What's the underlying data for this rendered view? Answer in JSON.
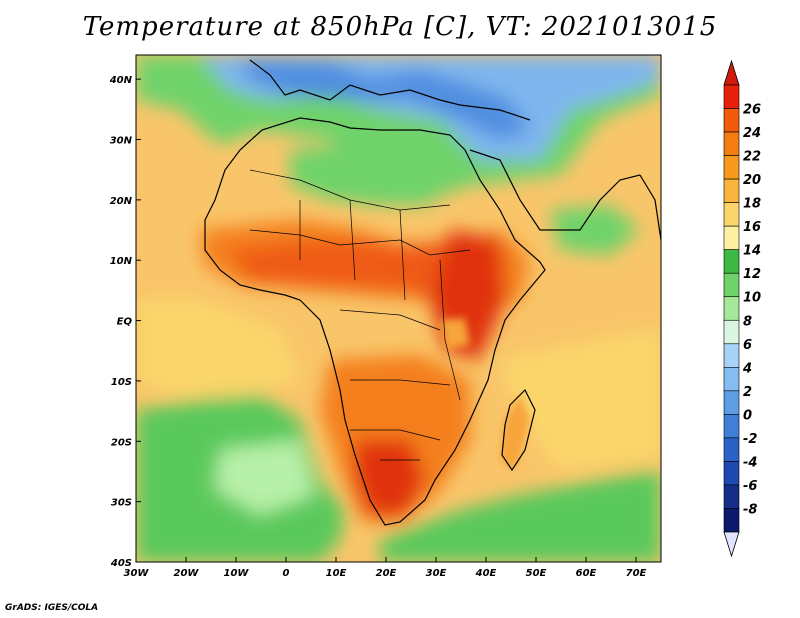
{
  "title": "Temperature at 850hPa [C], VT: 2021013015",
  "footer": "GrADS: IGES/COLA",
  "map": {
    "lon_range": [
      -30,
      75
    ],
    "lat_range": [
      -40,
      44
    ],
    "x_ticks": [
      "30W",
      "20W",
      "10W",
      "0",
      "10E",
      "20E",
      "30E",
      "40E",
      "50E",
      "60E",
      "70E"
    ],
    "x_tick_values": [
      -30,
      -20,
      -10,
      0,
      10,
      20,
      30,
      40,
      50,
      60,
      70
    ],
    "y_ticks": [
      "40N",
      "30N",
      "20N",
      "10N",
      "EQ",
      "10S",
      "20S",
      "30S",
      "40S"
    ],
    "y_tick_values": [
      40,
      30,
      20,
      10,
      0,
      -10,
      -20,
      -30,
      -40
    ],
    "grid": false
  },
  "colorbar": {
    "labels": [
      "26",
      "24",
      "22",
      "20",
      "18",
      "16",
      "14",
      "12",
      "10",
      "8",
      "6",
      "4",
      "2",
      "0",
      "-2",
      "-4",
      "-6",
      "-8"
    ],
    "levels": [
      26,
      24,
      22,
      20,
      18,
      16,
      14,
      12,
      10,
      8,
      6,
      4,
      2,
      0,
      -2,
      -4,
      -6,
      -8
    ],
    "colors": [
      "#e8200a",
      "#f25a0c",
      "#f47d12",
      "#f79a1d",
      "#f9b53c",
      "#fad66a",
      "#fdf0a0",
      "#3cb845",
      "#6ed36a",
      "#a6e89a",
      "#d9f7e0",
      "#a8d3f6",
      "#84bdf2",
      "#5e9ce6",
      "#3f7fd8",
      "#2a62c8",
      "#1f48b0",
      "#142e8a",
      "#0b1a6a"
    ],
    "top_arrow_color": "#d41a0a",
    "bottom_arrow_color": "#e2e4ff"
  },
  "field_colors": {
    "ocean_green": "#5ac95c",
    "light_green": "#8fe07f",
    "pale_green": "#b7f0a8",
    "yellow": "#fde89a",
    "light_orange": "#f9c56a",
    "orange": "#f7a43a",
    "dark_orange": "#f47f1a",
    "red_orange": "#ef5a12",
    "red": "#e0300c",
    "cold_blue": "#7fb6ee",
    "deep_blue": "#4f8ee0",
    "pale_blue": "#c5e6f8"
  }
}
